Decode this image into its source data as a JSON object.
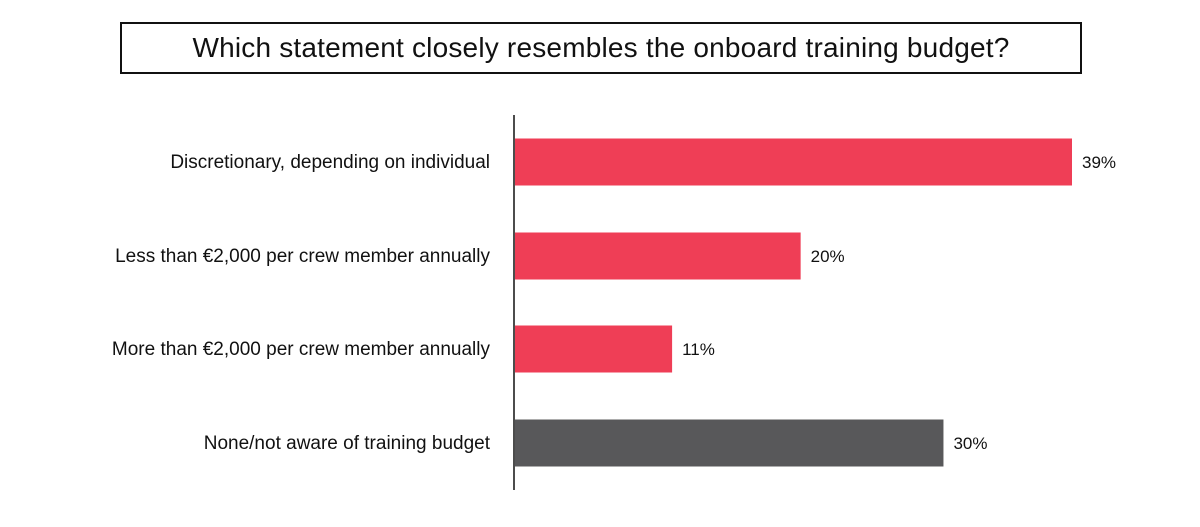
{
  "chart_data": {
    "type": "bar",
    "orientation": "horizontal",
    "title": "Which statement closely resembles the onboard training budget?",
    "categories": [
      "Discretionary, depending on individual",
      "Less than €2,000 per crew member annually",
      "More than €2,000 per crew member annually",
      "None/not aware of training budget"
    ],
    "values": [
      39,
      20,
      11,
      30
    ],
    "value_labels": [
      "39%",
      "20%",
      "11%",
      "30%"
    ],
    "bar_colors": [
      "#ef3e56",
      "#ef3e56",
      "#ef3e56",
      "#58585a"
    ],
    "xlim": [
      0,
      39
    ],
    "grid": false,
    "legend": "none"
  }
}
